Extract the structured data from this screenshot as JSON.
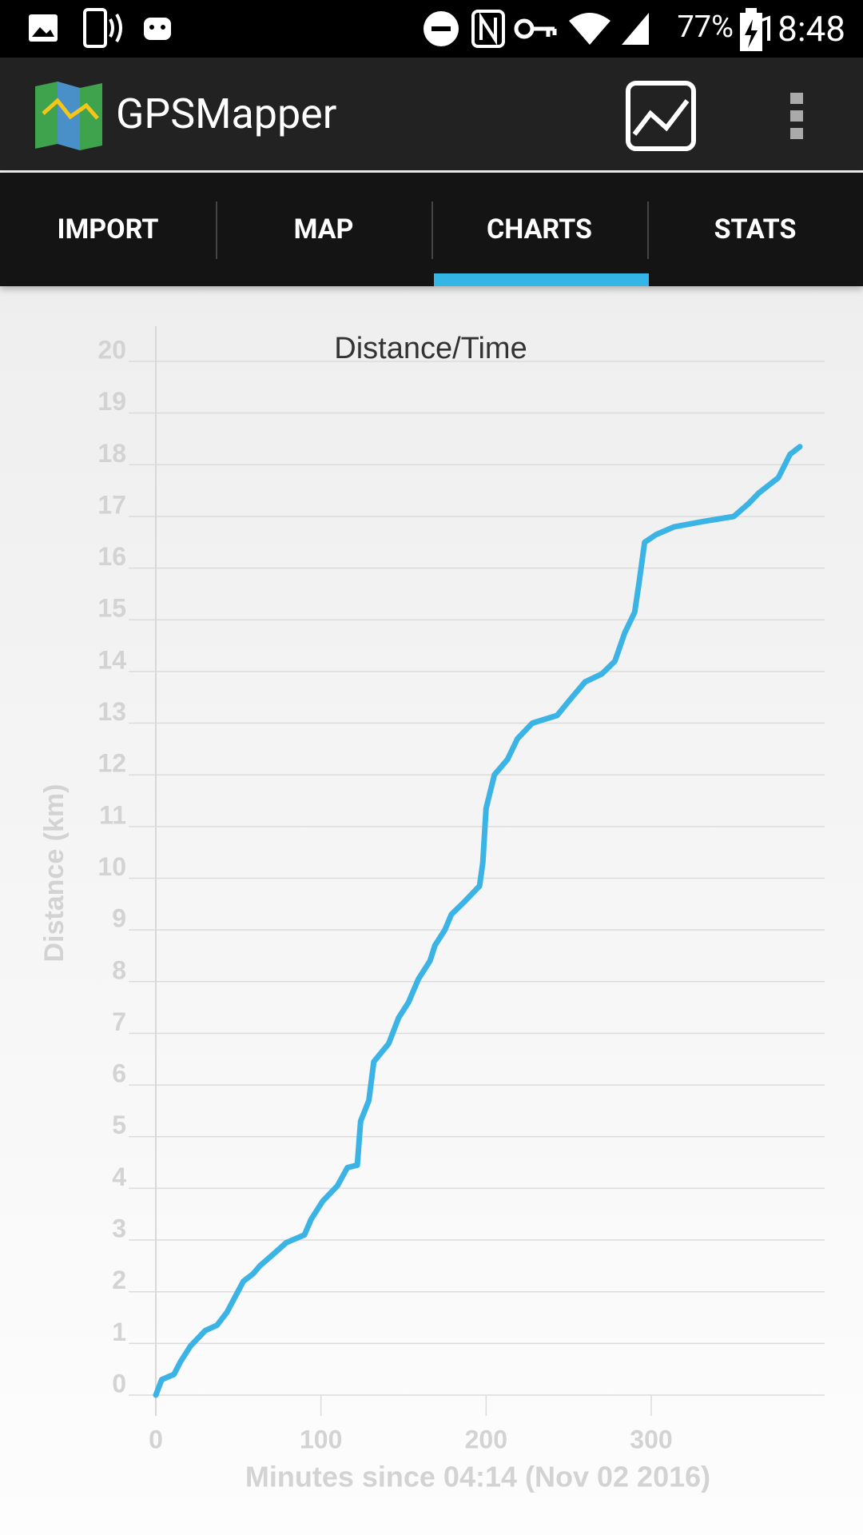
{
  "status_bar": {
    "battery": "77%",
    "time": "18:48"
  },
  "app_bar": {
    "title": "GPSMapper"
  },
  "tabs": [
    "IMPORT",
    "MAP",
    "CHARTS",
    "STATS"
  ],
  "chart_data": {
    "type": "line",
    "title": "Distance/Time",
    "x_label": "Minutes since 04:14 (Nov 02 2016)",
    "y_label": "Distance (km)",
    "x": [
      0,
      3.6,
      11,
      15,
      21,
      30,
      37,
      43,
      48,
      53,
      59,
      63,
      72,
      79,
      90,
      94,
      101,
      110,
      116,
      122,
      124,
      129,
      132,
      141,
      147,
      153,
      159,
      166,
      169,
      175,
      179,
      187,
      196,
      198,
      200,
      205,
      213,
      219,
      228,
      243,
      252,
      260,
      270,
      278,
      284,
      290,
      293,
      296,
      303,
      314,
      331,
      350,
      359,
      365,
      377,
      384,
      390
    ],
    "values": [
      0,
      0.3,
      0.4,
      0.65,
      0.95,
      1.25,
      1.35,
      1.6,
      1.9,
      2.2,
      2.35,
      2.5,
      2.75,
      2.95,
      3.1,
      3.4,
      3.75,
      4.05,
      4.4,
      4.45,
      5.3,
      5.7,
      6.45,
      6.8,
      7.3,
      7.6,
      8.05,
      8.4,
      8.7,
      9.0,
      9.3,
      9.55,
      9.85,
      10.3,
      11.35,
      12.0,
      12.3,
      12.7,
      13.0,
      13.15,
      13.5,
      13.8,
      13.95,
      14.2,
      14.75,
      15.15,
      15.8,
      16.5,
      16.65,
      16.8,
      16.9,
      17.0,
      17.25,
      17.45,
      17.75,
      18.2,
      18.35
    ],
    "color": "#3bb4e5",
    "xlim": [
      0,
      405
    ],
    "xticks": [
      0,
      100,
      200,
      300
    ],
    "ylim": [
      0,
      20
    ],
    "yticks": [
      0,
      1,
      2,
      3,
      4,
      5,
      6,
      7,
      8,
      9,
      10,
      11,
      12,
      13,
      14,
      15,
      16,
      17,
      18,
      19,
      20
    ],
    "grid": true
  }
}
